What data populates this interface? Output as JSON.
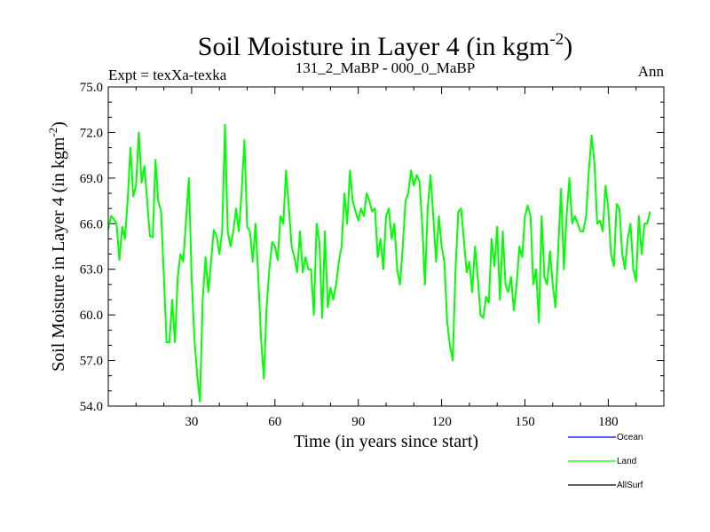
{
  "chart_data": {
    "type": "line",
    "title": "Soil Moisture in Layer 4 (in kgm",
    "title_sup": "-2",
    "title_close": ")",
    "left_subtitle": "Expt = texXa-texka",
    "center_subtitle": "131_2_MaBP - 000_0_MaBP",
    "right_subtitle": "Ann",
    "xlabel": "Time (in years since start)",
    "ylabel": "Soil Moisture in Layer 4 (in kgm",
    "ylabel_sup": "-2",
    "ylabel_close": ")",
    "xlim": [
      0,
      200
    ],
    "ylim": [
      54.0,
      75.0
    ],
    "xticks": [
      30,
      60,
      90,
      120,
      150,
      180
    ],
    "xtick_labels": [
      "30",
      "60",
      "90",
      "120",
      "150",
      "180"
    ],
    "yticks": [
      54.0,
      57.0,
      60.0,
      63.0,
      66.0,
      69.0,
      72.0,
      75.0
    ],
    "ytick_labels": [
      "54.0",
      "57.0",
      "60.0",
      "63.0",
      "66.0",
      "69.0",
      "72.0",
      "75.0"
    ],
    "series": [
      {
        "name": "Ocean",
        "color": "#0000ff",
        "values": []
      },
      {
        "name": "Land",
        "color": "#00ff00",
        "values": [
          [
            0,
            65.6
          ],
          [
            1,
            66.5
          ],
          [
            2,
            66.3
          ],
          [
            3,
            66.0
          ],
          [
            4,
            63.6
          ],
          [
            5,
            65.8
          ],
          [
            6,
            65.0
          ],
          [
            7,
            67.6
          ],
          [
            8,
            71.0
          ],
          [
            9,
            67.8
          ],
          [
            10,
            68.5
          ],
          [
            11,
            72.0
          ],
          [
            12,
            68.7
          ],
          [
            13,
            69.8
          ],
          [
            14,
            67.5
          ],
          [
            15,
            65.2
          ],
          [
            16,
            65.1
          ],
          [
            17,
            70.2
          ],
          [
            18,
            67.5
          ],
          [
            19,
            66.8
          ],
          [
            20,
            62.6
          ],
          [
            21,
            58.2
          ],
          [
            22,
            58.2
          ],
          [
            23,
            61.0
          ],
          [
            24,
            58.2
          ],
          [
            25,
            62.5
          ],
          [
            26,
            64.0
          ],
          [
            27,
            63.5
          ],
          [
            28,
            66.2
          ],
          [
            29,
            69.0
          ],
          [
            30,
            62.5
          ],
          [
            31,
            58.5
          ],
          [
            32,
            56.0
          ],
          [
            33,
            54.3
          ],
          [
            34,
            61.0
          ],
          [
            35,
            63.8
          ],
          [
            36,
            61.5
          ],
          [
            37,
            63.5
          ],
          [
            38,
            65.6
          ],
          [
            39,
            65.2
          ],
          [
            40,
            64.0
          ],
          [
            41,
            65.5
          ],
          [
            42,
            72.5
          ],
          [
            43,
            65.5
          ],
          [
            44,
            64.5
          ],
          [
            45,
            65.5
          ],
          [
            46,
            67.0
          ],
          [
            47,
            65.5
          ],
          [
            48,
            68.0
          ],
          [
            49,
            71.5
          ],
          [
            50,
            65.8
          ],
          [
            51,
            65.5
          ],
          [
            52,
            63.5
          ],
          [
            53,
            66.0
          ],
          [
            54,
            62.5
          ],
          [
            55,
            58.5
          ],
          [
            56,
            55.8
          ],
          [
            57,
            60.5
          ],
          [
            58,
            63.0
          ],
          [
            59,
            64.8
          ],
          [
            60,
            64.5
          ],
          [
            61,
            63.6
          ],
          [
            62,
            66.5
          ],
          [
            63,
            66.0
          ],
          [
            64,
            69.5
          ],
          [
            65,
            67.0
          ],
          [
            66,
            64.5
          ],
          [
            67,
            63.8
          ],
          [
            68,
            62.8
          ],
          [
            69,
            65.5
          ],
          [
            70,
            62.8
          ],
          [
            71,
            63.8
          ],
          [
            72,
            63.0
          ],
          [
            73,
            63.0
          ],
          [
            74,
            60.0
          ],
          [
            75,
            66.0
          ],
          [
            76,
            64.8
          ],
          [
            77,
            59.8
          ],
          [
            78,
            65.5
          ],
          [
            79,
            60.5
          ],
          [
            80,
            61.8
          ],
          [
            81,
            61.0
          ],
          [
            82,
            62.0
          ],
          [
            83,
            63.5
          ],
          [
            84,
            64.5
          ],
          [
            85,
            68.0
          ],
          [
            86,
            66.0
          ],
          [
            87,
            69.5
          ],
          [
            88,
            67.5
          ],
          [
            89,
            66.8
          ],
          [
            90,
            66.2
          ],
          [
            91,
            67.0
          ],
          [
            92,
            66.5
          ],
          [
            93,
            68.0
          ],
          [
            94,
            67.5
          ],
          [
            95,
            66.8
          ],
          [
            96,
            67.0
          ],
          [
            97,
            63.8
          ],
          [
            98,
            65.0
          ],
          [
            99,
            63.0
          ],
          [
            100,
            66.5
          ],
          [
            101,
            67.0
          ],
          [
            102,
            65.0
          ],
          [
            103,
            66.0
          ],
          [
            104,
            63.0
          ],
          [
            105,
            62.0
          ],
          [
            106,
            64.5
          ],
          [
            107,
            67.5
          ],
          [
            108,
            68.0
          ],
          [
            109,
            69.5
          ],
          [
            110,
            68.5
          ],
          [
            111,
            69.2
          ],
          [
            112,
            68.8
          ],
          [
            113,
            66.0
          ],
          [
            114,
            62.0
          ],
          [
            115,
            67.0
          ],
          [
            116,
            69.2
          ],
          [
            117,
            66.5
          ],
          [
            118,
            63.5
          ],
          [
            119,
            66.5
          ],
          [
            120,
            64.5
          ],
          [
            121,
            63.5
          ],
          [
            122,
            59.5
          ],
          [
            123,
            58.0
          ],
          [
            124,
            57.0
          ],
          [
            125,
            63.0
          ],
          [
            126,
            66.8
          ],
          [
            127,
            67.0
          ],
          [
            128,
            65.0
          ],
          [
            129,
            62.8
          ],
          [
            130,
            63.5
          ],
          [
            131,
            61.5
          ],
          [
            132,
            64.5
          ],
          [
            133,
            62.5
          ],
          [
            134,
            60.0
          ],
          [
            135,
            59.8
          ],
          [
            136,
            61.2
          ],
          [
            137,
            60.8
          ],
          [
            138,
            65.0
          ],
          [
            139,
            63.2
          ],
          [
            140,
            65.8
          ],
          [
            141,
            61.0
          ],
          [
            142,
            65.5
          ],
          [
            143,
            62.0
          ],
          [
            144,
            61.5
          ],
          [
            145,
            62.5
          ],
          [
            146,
            60.3
          ],
          [
            147,
            62.0
          ],
          [
            148,
            64.5
          ],
          [
            149,
            63.8
          ],
          [
            150,
            66.5
          ],
          [
            151,
            67.2
          ],
          [
            152,
            66.5
          ],
          [
            153,
            62.0
          ],
          [
            154,
            63.0
          ],
          [
            155,
            59.5
          ],
          [
            156,
            66.5
          ],
          [
            157,
            62.5
          ],
          [
            158,
            62.0
          ],
          [
            159,
            64.2
          ],
          [
            160,
            62.0
          ],
          [
            161,
            60.5
          ],
          [
            162,
            64.5
          ],
          [
            163,
            68.3
          ],
          [
            164,
            63.0
          ],
          [
            165,
            66.5
          ],
          [
            166,
            69.0
          ],
          [
            167,
            66.0
          ],
          [
            168,
            66.5
          ],
          [
            169,
            66.0
          ],
          [
            170,
            65.5
          ],
          [
            171,
            65.5
          ],
          [
            172,
            66.5
          ],
          [
            173,
            69.5
          ],
          [
            174,
            71.8
          ],
          [
            175,
            70.0
          ],
          [
            176,
            66.0
          ],
          [
            177,
            66.2
          ],
          [
            178,
            65.5
          ],
          [
            179,
            68.5
          ],
          [
            180,
            67.0
          ],
          [
            181,
            64.0
          ],
          [
            182,
            63.2
          ],
          [
            183,
            67.3
          ],
          [
            184,
            67.0
          ],
          [
            185,
            64.0
          ],
          [
            186,
            63.0
          ],
          [
            187,
            65.0
          ],
          [
            188,
            66.0
          ],
          [
            189,
            63.0
          ],
          [
            190,
            62.2
          ],
          [
            191,
            66.5
          ],
          [
            192,
            64.0
          ],
          [
            193,
            66.0
          ],
          [
            194,
            66.0
          ],
          [
            195,
            66.8
          ]
        ]
      },
      {
        "name": "AllSurf",
        "color": "#000000",
        "values": []
      }
    ],
    "legend_position": "bottom-right"
  }
}
